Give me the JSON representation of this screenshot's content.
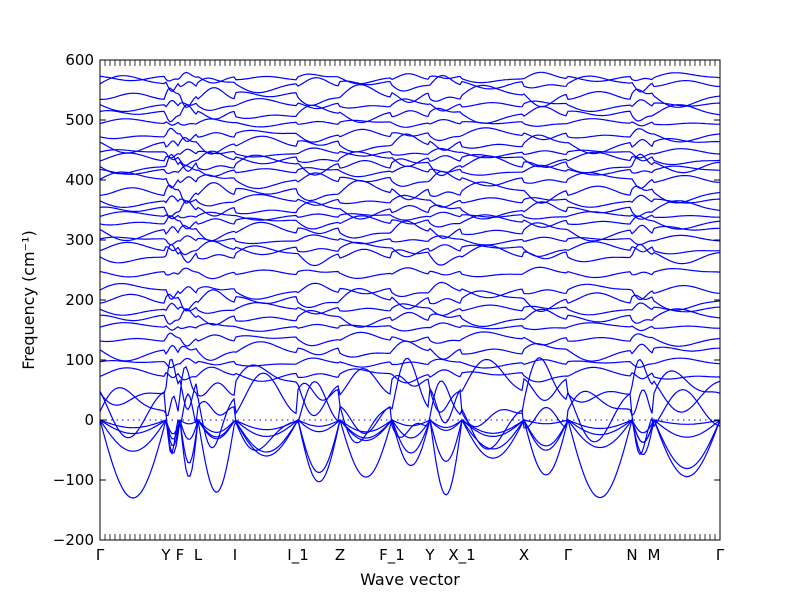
{
  "chart_data": {
    "type": "line",
    "title": "",
    "xlabel": "Wave vector",
    "ylabel": "Frequency (cm⁻¹)",
    "ylim": [
      -200,
      600
    ],
    "yticks": [
      -200,
      -100,
      0,
      100,
      200,
      300,
      400,
      500,
      600
    ],
    "xlim": [
      0,
      31
    ],
    "high_symmetry_points": [
      {
        "label": "Γ",
        "x": 0
      },
      {
        "label": "Y",
        "x": 3.3
      },
      {
        "label": "F",
        "x": 4.0
      },
      {
        "label": "L",
        "x": 4.9
      },
      {
        "label": "I",
        "x": 6.75
      },
      {
        "label": "I_1",
        "x": 9.9
      },
      {
        "label": "Z",
        "x": 12.0
      },
      {
        "label": "F_1",
        "x": 14.6
      },
      {
        "label": "Y",
        "x": 16.5
      },
      {
        "label": "X_1",
        "x": 18.1
      },
      {
        "label": "X",
        "x": 21.2
      },
      {
        "label": "Γ",
        "x": 23.4
      },
      {
        "label": "N",
        "x": 26.6
      },
      {
        "label": "M",
        "x": 27.7
      },
      {
        "label": "Γ",
        "x": 31.0
      }
    ],
    "zero_line": true,
    "grid": false,
    "legend": "none",
    "series_color": "#0000ff",
    "band_levels": [
      -130,
      -95,
      -60,
      -30,
      5,
      30,
      55,
      75,
      95,
      115,
      135,
      155,
      170,
      185,
      200,
      215,
      245,
      275,
      285,
      300,
      315,
      330,
      340,
      350,
      365,
      380,
      400,
      415,
      425,
      435,
      445,
      460,
      475,
      495,
      510,
      525,
      540,
      560,
      570
    ]
  }
}
